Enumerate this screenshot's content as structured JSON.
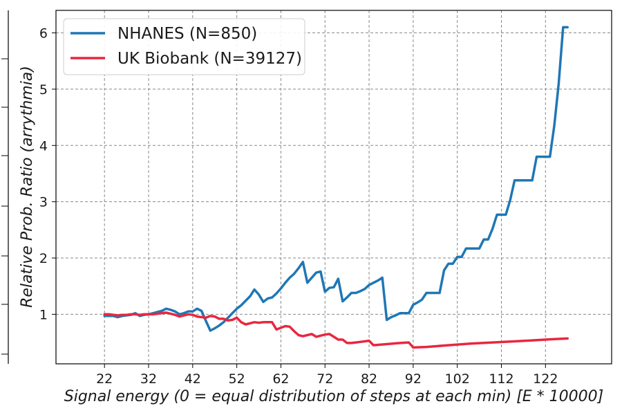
{
  "chart_data": {
    "type": "line",
    "xlabel": "Signal energy (0 = equal distribution of steps at each min) [E * 10000]",
    "ylabel": "Relative Prob. Ratio (arrythmia)",
    "xlim": [
      11,
      137
    ],
    "ylim": [
      0.12,
      6.4
    ],
    "xticks": [
      22,
      32,
      42,
      52,
      62,
      72,
      82,
      92,
      102,
      112,
      122
    ],
    "yticks": [
      1,
      2,
      3,
      4,
      5,
      6
    ],
    "grid": true,
    "legend_position": "top-left",
    "series": [
      {
        "name": "NHANES (N=850)",
        "color": "#1f77b4",
        "x": [
          22,
          24,
          25,
          26,
          28,
          29,
          30,
          31,
          32,
          33,
          34,
          35,
          36,
          37,
          38,
          39,
          40,
          41,
          42,
          43,
          44,
          45,
          46,
          47,
          48,
          49,
          50,
          51,
          52,
          53,
          54,
          55,
          56,
          57,
          58,
          59,
          60,
          61,
          62,
          63,
          64,
          65,
          66,
          67,
          68,
          69,
          70,
          71,
          72,
          73,
          74,
          75,
          76,
          77,
          78,
          79,
          80,
          81,
          82,
          83,
          84,
          85,
          86,
          87,
          88,
          89,
          90,
          91,
          92,
          93,
          94,
          95,
          96,
          97,
          98,
          99,
          100,
          101,
          102,
          103,
          104,
          105,
          106,
          107,
          108,
          109,
          110,
          111,
          112,
          113,
          114,
          115,
          116,
          117,
          118,
          119,
          120,
          121,
          122,
          123,
          124,
          125,
          126,
          127
        ],
        "y": [
          0.97,
          0.97,
          0.95,
          0.97,
          0.99,
          1.02,
          0.97,
          0.99,
          1.0,
          1.02,
          1.04,
          1.06,
          1.1,
          1.08,
          1.05,
          1.0,
          1.02,
          1.05,
          1.05,
          1.1,
          1.06,
          0.88,
          0.71,
          0.75,
          0.8,
          0.86,
          0.94,
          1.02,
          1.1,
          1.16,
          1.24,
          1.32,
          1.44,
          1.35,
          1.22,
          1.28,
          1.3,
          1.37,
          1.46,
          1.56,
          1.65,
          1.72,
          1.82,
          1.93,
          1.56,
          1.65,
          1.74,
          1.76,
          1.4,
          1.47,
          1.48,
          1.63,
          1.23,
          1.3,
          1.38,
          1.38,
          1.41,
          1.45,
          1.52,
          1.56,
          1.6,
          1.65,
          0.9,
          0.95,
          0.98,
          1.02,
          1.02,
          1.02,
          1.17,
          1.21,
          1.26,
          1.38,
          1.38,
          1.38,
          1.38,
          1.78,
          1.9,
          1.9,
          2.02,
          2.02,
          2.17,
          2.17,
          2.17,
          2.17,
          2.33,
          2.33,
          2.52,
          2.77,
          2.77,
          2.77,
          3.03,
          3.38,
          3.38,
          3.38,
          3.38,
          3.38,
          3.8,
          3.8,
          3.8,
          3.8,
          4.35,
          5.1,
          6.1,
          6.1
        ]
      },
      {
        "name": "UK Biobank (N=39127)",
        "color": "#e8273f",
        "x": [
          22,
          23,
          24,
          25,
          26,
          27,
          28,
          29,
          30,
          31,
          32,
          33,
          34,
          35,
          36,
          37,
          38,
          39,
          40,
          41,
          42,
          43,
          44,
          45,
          46,
          47,
          48,
          49,
          50,
          51,
          52,
          53,
          54,
          55,
          56,
          57,
          58,
          59,
          60,
          61,
          62,
          63,
          64,
          65,
          66,
          67,
          68,
          69,
          70,
          71,
          72,
          73,
          74,
          75,
          76,
          77,
          78,
          79,
          80,
          81,
          82,
          83,
          86,
          89,
          91,
          92,
          95,
          100,
          105,
          110,
          115,
          120,
          124,
          127
        ],
        "y": [
          1.0,
          1.0,
          0.99,
          0.98,
          0.99,
          0.99,
          1.0,
          1.0,
          0.99,
          1.0,
          1.0,
          1.0,
          1.01,
          1.02,
          1.03,
          1.01,
          0.99,
          0.96,
          0.98,
          1.0,
          0.99,
          0.96,
          0.95,
          0.94,
          0.97,
          0.96,
          0.92,
          0.92,
          0.89,
          0.9,
          0.94,
          0.86,
          0.82,
          0.84,
          0.86,
          0.85,
          0.86,
          0.86,
          0.86,
          0.73,
          0.76,
          0.79,
          0.78,
          0.7,
          0.63,
          0.61,
          0.63,
          0.65,
          0.6,
          0.62,
          0.64,
          0.65,
          0.6,
          0.55,
          0.55,
          0.49,
          0.49,
          0.5,
          0.51,
          0.52,
          0.53,
          0.45,
          0.47,
          0.49,
          0.5,
          0.41,
          0.42,
          0.45,
          0.48,
          0.5,
          0.52,
          0.54,
          0.56,
          0.57
        ]
      }
    ]
  }
}
